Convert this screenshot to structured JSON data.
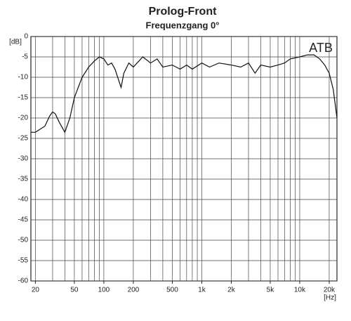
{
  "chart_data": {
    "type": "line",
    "title": "Prolog-Front",
    "subtitle": "Frequenzgang 0°",
    "annotation": "ATB",
    "y_label": "[dB]",
    "x_label": "[Hz]",
    "xscale": "log",
    "grid": true,
    "xlim": [
      18,
      24000
    ],
    "ylim": [
      -60,
      0
    ],
    "yticks": [
      0,
      -5,
      -10,
      -15,
      -20,
      -25,
      -30,
      -35,
      -40,
      -45,
      -50,
      -55,
      -60
    ],
    "xticks": [
      20,
      50,
      100,
      200,
      500,
      {
        "value": 1000,
        "label": "1k"
      },
      {
        "value": 2000,
        "label": "2k"
      },
      {
        "value": 5000,
        "label": "5k"
      },
      {
        "value": 10000,
        "label": "10k"
      },
      {
        "value": 20000,
        "label": "20k"
      }
    ],
    "xgrid": [
      20,
      30,
      40,
      50,
      60,
      70,
      80,
      90,
      100,
      200,
      300,
      400,
      500,
      600,
      700,
      800,
      900,
      1000,
      2000,
      3000,
      4000,
      5000,
      6000,
      7000,
      8000,
      9000,
      10000,
      20000
    ],
    "series": [
      {
        "name": "Frequenzgang",
        "color": "#111",
        "x": [
          18,
          20,
          25,
          28,
          30,
          32,
          35,
          40,
          45,
          50,
          60,
          70,
          80,
          90,
          100,
          110,
          120,
          130,
          150,
          160,
          180,
          200,
          250,
          300,
          350,
          400,
          500,
          600,
          700,
          800,
          1000,
          1200,
          1500,
          2000,
          2500,
          3000,
          3500,
          4000,
          5000,
          6000,
          7000,
          8000,
          10000,
          12000,
          14000,
          16000,
          18000,
          20000,
          22000,
          24000
        ],
        "values": [
          -23.5,
          -23.5,
          -22,
          -19.5,
          -18.5,
          -19,
          -21,
          -23.5,
          -20,
          -15,
          -10,
          -7.5,
          -6,
          -5,
          -5.5,
          -7,
          -6.5,
          -8,
          -12.5,
          -9,
          -6.5,
          -7.5,
          -5,
          -6.5,
          -5.5,
          -7.5,
          -7,
          -8,
          -7,
          -8,
          -6.5,
          -7.5,
          -6.5,
          -7,
          -7.5,
          -6.5,
          -9,
          -7,
          -7.5,
          -7,
          -6.5,
          -5.5,
          -5,
          -4.5,
          -4.5,
          -5.5,
          -7,
          -9,
          -13,
          -20
        ]
      }
    ]
  }
}
